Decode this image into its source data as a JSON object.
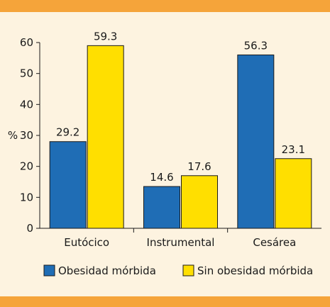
{
  "chart_data": {
    "type": "bar",
    "title": "",
    "xlabel": "",
    "ylabel": "%",
    "ylim": [
      0,
      60
    ],
    "yticks": [
      0,
      10,
      20,
      30,
      40,
      50,
      60
    ],
    "grid": false,
    "legend_position": "bottom",
    "categories": [
      "Eutócico",
      "Instrumental",
      "Cesárea"
    ],
    "series": [
      {
        "name": "Obesidad mórbida",
        "color": "#1f6db5",
        "values": [
          28.0,
          13.5,
          56.0
        ],
        "labels": [
          "29.2",
          "14.6",
          "56.3"
        ]
      },
      {
        "name": "Sin obesidad mórbida",
        "color": "#ffdf00",
        "values": [
          59.0,
          17.0,
          22.5
        ],
        "labels": [
          "59.3",
          "17.6",
          "23.1"
        ]
      }
    ]
  }
}
